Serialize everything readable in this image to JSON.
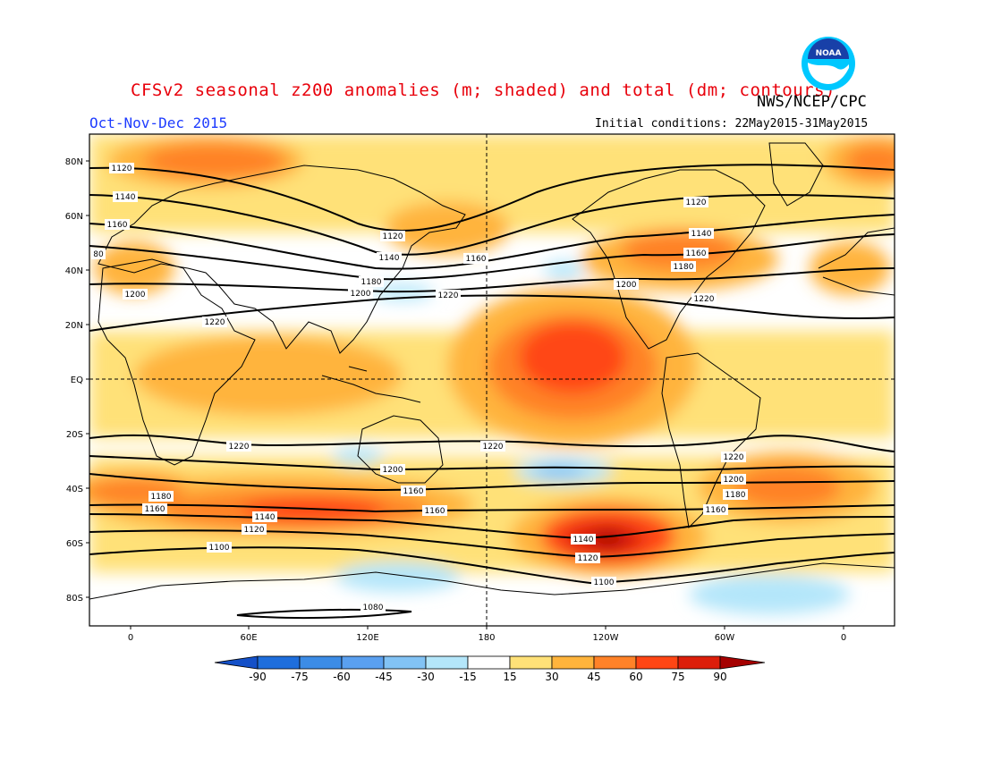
{
  "title": "CFSv2 seasonal z200 anomalies (m; shaded) and total (dm; contours)",
  "agency": "NWS/NCEP/CPC",
  "season": "Oct-Nov-Dec 2015",
  "initial_conditions": "Initial conditions: 22May2015-31May2015",
  "logo": {
    "text": "NOAA",
    "colors": {
      "outer": "#00c8ff",
      "inner": "#1840a8"
    }
  },
  "map": {
    "lat_labels": [
      "80N",
      "60N",
      "40N",
      "20N",
      "EQ",
      "20S",
      "40S",
      "60S",
      "80S"
    ],
    "lon_labels": [
      "0",
      "60E",
      "120E",
      "180",
      "120W",
      "60W",
      "0"
    ],
    "contour_labels": {
      "c1080": "1080",
      "c1100": "1100",
      "c1120": "1120",
      "c1140": "1140",
      "c1160": "1160",
      "c1180": "1180",
      "c1200": "1200",
      "c1220": "1220",
      "c80": "80"
    }
  },
  "colorbar": {
    "levels": [
      "-90",
      "-75",
      "-60",
      "-45",
      "-30",
      "-15",
      "15",
      "30",
      "45",
      "60",
      "75",
      "90"
    ],
    "colors": [
      "#1e6edc",
      "#3c8ce6",
      "#5aa0f0",
      "#82c3f5",
      "#b4e6fa",
      "#ffffff",
      "#ffe178",
      "#ffb43c",
      "#ff8228",
      "#ff4614",
      "#dc1e0a",
      "#a50000"
    ],
    "under_color": "#1450c8",
    "over_color": "#a50000"
  }
}
